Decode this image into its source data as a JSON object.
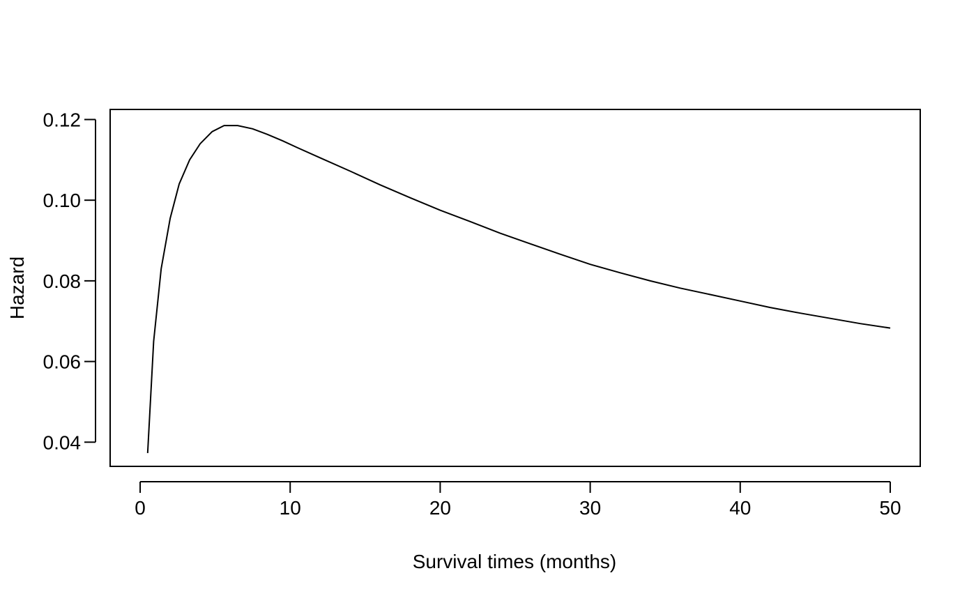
{
  "chart_data": {
    "type": "line",
    "title": "",
    "xlabel": "Survival times (months)",
    "ylabel": "Hazard",
    "xlim": [
      -2,
      52
    ],
    "ylim": [
      0.034,
      0.1225
    ],
    "x_ticks": [
      0,
      10,
      20,
      30,
      40,
      50
    ],
    "y_ticks": [
      0.04,
      0.06,
      0.08,
      0.1,
      0.12
    ],
    "y_tick_labels": [
      "0.04",
      "0.06",
      "0.08",
      "0.10",
      "0.12"
    ],
    "grid": false,
    "legend": "none",
    "line_color": "#000000",
    "series": [
      {
        "x": [
          0.5,
          0.9,
          1.4,
          2.0,
          2.6,
          3.3,
          4.0,
          4.8,
          5.6,
          6.5,
          7.5,
          8.5,
          9.5,
          10.5,
          12,
          14,
          16,
          18,
          20,
          22,
          24,
          26,
          28,
          30,
          32,
          34,
          36,
          38,
          40,
          42,
          44,
          46,
          48,
          50
        ],
        "y": [
          0.0373,
          0.065,
          0.083,
          0.0955,
          0.104,
          0.11,
          0.114,
          0.117,
          0.1185,
          0.1185,
          0.1177,
          0.1163,
          0.1147,
          0.113,
          0.1105,
          0.1072,
          0.1038,
          0.1006,
          0.0975,
          0.0947,
          0.0918,
          0.0892,
          0.0866,
          0.0841,
          0.082,
          0.08,
          0.0782,
          0.0766,
          0.075,
          0.0734,
          0.072,
          0.0707,
          0.0694,
          0.0683
        ]
      }
    ]
  }
}
